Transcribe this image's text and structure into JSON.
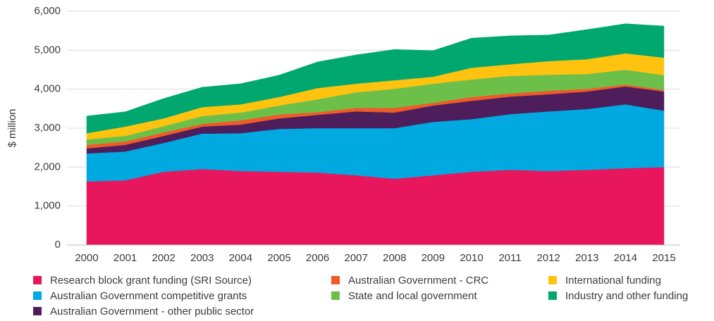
{
  "chart_data": {
    "type": "stacked_area",
    "y_label": "$ million",
    "categories": [
      "2000",
      "2001",
      "2002",
      "2003",
      "2004",
      "2005",
      "2006",
      "2007",
      "2008",
      "2009",
      "2010",
      "2011",
      "2012",
      "2013",
      "2014",
      "2015"
    ],
    "series": [
      {
        "name": "Research block grant funding (SRI Source)",
        "color": "#e8175d",
        "values": [
          1630,
          1660,
          1880,
          1950,
          1900,
          1880,
          1860,
          1790,
          1700,
          1790,
          1880,
          1930,
          1900,
          1930,
          1970,
          2000
        ]
      },
      {
        "name": "Australian Government competitive grants",
        "color": "#00a9e0",
        "values": [
          720,
          740,
          740,
          910,
          970,
          1100,
          1140,
          1210,
          1300,
          1370,
          1350,
          1430,
          1530,
          1560,
          1640,
          1450
        ]
      },
      {
        "name": "Australian Government - other public sector",
        "color": "#4e1d5c",
        "values": [
          130,
          170,
          180,
          180,
          220,
          270,
          340,
          430,
          400,
          420,
          470,
          450,
          440,
          450,
          460,
          490
        ]
      },
      {
        "name": "Australian Government - CRC",
        "color": "#f05a28",
        "values": [
          90,
          90,
          90,
          70,
          110,
          100,
          70,
          90,
          120,
          70,
          100,
          80,
          90,
          70,
          50,
          40
        ]
      },
      {
        "name": "State and local government",
        "color": "#6cc04a",
        "values": [
          140,
          140,
          160,
          200,
          200,
          230,
          330,
          400,
          490,
          490,
          450,
          450,
          410,
          380,
          380,
          380
        ]
      },
      {
        "name": "International funding",
        "color": "#ffc20e",
        "values": [
          160,
          240,
          200,
          230,
          210,
          220,
          290,
          220,
          220,
          180,
          300,
          300,
          350,
          380,
          420,
          450
        ]
      },
      {
        "name": "Industry and other funding",
        "color": "#00a870",
        "values": [
          440,
          380,
          510,
          510,
          530,
          560,
          670,
          740,
          790,
          670,
          760,
          730,
          670,
          760,
          760,
          810
        ]
      }
    ],
    "ylim": [
      0,
      6000
    ],
    "yticks": [
      0,
      {
        "value": 1000,
        "label": "1,000"
      },
      {
        "value": 2000,
        "label": "2,000"
      },
      {
        "value": 3000,
        "label": "3,000"
      },
      {
        "value": 4000,
        "label": "4,000"
      },
      {
        "value": 5000,
        "label": "5,000"
      },
      {
        "value": 6000,
        "label": "6,000"
      }
    ],
    "grid": true
  }
}
